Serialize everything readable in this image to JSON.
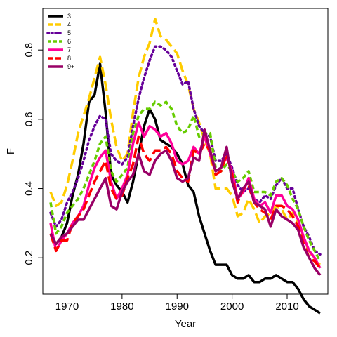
{
  "chart_data": {
    "type": "line",
    "xlabel": "Year",
    "ylabel": "F",
    "xlim": [
      1965.6,
      2017.4
    ],
    "ylim": [
      0.095,
      0.92
    ],
    "xticks": [
      1970,
      1980,
      1990,
      2000,
      2010
    ],
    "yticks": [
      0.2,
      0.4,
      0.6,
      0.8
    ],
    "xtick_labels": [
      "1970",
      "1980",
      "1990",
      "2000",
      "2010"
    ],
    "ytick_labels": [
      "0.2",
      "0.4",
      "0.6",
      "0.8"
    ],
    "grid": false,
    "legend_position": "top-left",
    "x": [
      1967,
      1968,
      1969,
      1970,
      1971,
      1972,
      1973,
      1974,
      1975,
      1976,
      1977,
      1978,
      1979,
      1980,
      1981,
      1982,
      1983,
      1984,
      1985,
      1986,
      1987,
      1988,
      1989,
      1990,
      1991,
      1992,
      1993,
      1994,
      1995,
      1996,
      1997,
      1998,
      1999,
      2000,
      2001,
      2002,
      2003,
      2004,
      2005,
      2006,
      2007,
      2008,
      2009,
      2010,
      2011,
      2012,
      2013,
      2014,
      2015,
      2016
    ],
    "series": [
      {
        "name": "3",
        "color": "#000000",
        "dash": "solid",
        "values": [
          0.27,
          0.24,
          0.26,
          0.3,
          0.38,
          0.44,
          0.53,
          0.65,
          0.67,
          0.76,
          0.62,
          0.44,
          0.41,
          0.39,
          0.36,
          0.42,
          0.5,
          0.58,
          0.63,
          0.6,
          0.54,
          0.53,
          0.52,
          0.5,
          0.47,
          0.41,
          0.39,
          0.32,
          0.27,
          0.22,
          0.18,
          0.18,
          0.18,
          0.15,
          0.14,
          0.14,
          0.15,
          0.13,
          0.13,
          0.14,
          0.14,
          0.15,
          0.14,
          0.13,
          0.13,
          0.11,
          0.08,
          0.06,
          0.05,
          0.04
        ]
      },
      {
        "name": "4",
        "color": "#FFCC00",
        "dash": "long",
        "values": [
          0.39,
          0.35,
          0.36,
          0.41,
          0.48,
          0.56,
          0.61,
          0.66,
          0.72,
          0.78,
          0.7,
          0.6,
          0.52,
          0.48,
          0.5,
          0.62,
          0.72,
          0.78,
          0.82,
          0.89,
          0.84,
          0.83,
          0.81,
          0.79,
          0.74,
          0.7,
          0.63,
          0.59,
          0.54,
          0.5,
          0.4,
          0.4,
          0.4,
          0.38,
          0.32,
          0.33,
          0.37,
          0.34,
          0.3,
          0.32,
          0.33,
          0.35,
          0.34,
          0.31,
          0.33,
          0.3,
          0.25,
          0.22,
          0.19,
          0.18
        ]
      },
      {
        "name": "5",
        "color": "#660099",
        "dash": "dot",
        "values": [
          0.33,
          0.29,
          0.31,
          0.36,
          0.39,
          0.43,
          0.48,
          0.54,
          0.58,
          0.61,
          0.6,
          0.5,
          0.48,
          0.47,
          0.49,
          0.58,
          0.66,
          0.72,
          0.77,
          0.81,
          0.81,
          0.8,
          0.78,
          0.74,
          0.7,
          0.71,
          0.63,
          0.58,
          0.56,
          0.55,
          0.48,
          0.48,
          0.5,
          0.46,
          0.41,
          0.39,
          0.4,
          0.37,
          0.36,
          0.38,
          0.37,
          0.41,
          0.43,
          0.4,
          0.4,
          0.34,
          0.29,
          0.26,
          0.22,
          0.21
        ]
      },
      {
        "name": "6",
        "color": "#66CC00",
        "dash": "short",
        "values": [
          0.36,
          0.27,
          0.29,
          0.33,
          0.35,
          0.37,
          0.4,
          0.44,
          0.48,
          0.53,
          0.55,
          0.45,
          0.42,
          0.44,
          0.46,
          0.56,
          0.61,
          0.63,
          0.63,
          0.65,
          0.64,
          0.65,
          0.63,
          0.58,
          0.56,
          0.57,
          0.61,
          0.55,
          0.56,
          0.56,
          0.46,
          0.45,
          0.47,
          0.45,
          0.42,
          0.43,
          0.45,
          0.39,
          0.39,
          0.39,
          0.38,
          0.42,
          0.43,
          0.41,
          0.37,
          0.34,
          0.29,
          0.25,
          0.22,
          0.19
        ]
      },
      {
        "name": "7",
        "color": "#FF0099",
        "dash": "solid",
        "values": [
          0.3,
          0.22,
          0.25,
          0.27,
          0.3,
          0.32,
          0.35,
          0.41,
          0.46,
          0.49,
          0.51,
          0.42,
          0.37,
          0.4,
          0.44,
          0.53,
          0.59,
          0.55,
          0.58,
          0.57,
          0.55,
          0.56,
          0.53,
          0.48,
          0.47,
          0.48,
          0.52,
          0.5,
          0.55,
          0.5,
          0.45,
          0.46,
          0.49,
          0.45,
          0.37,
          0.39,
          0.43,
          0.37,
          0.35,
          0.36,
          0.33,
          0.38,
          0.38,
          0.35,
          0.34,
          0.31,
          0.26,
          0.22,
          0.2,
          0.17
        ]
      },
      {
        "name": "8",
        "color": "#FF0000",
        "dash": "long",
        "values": [
          0.27,
          0.22,
          0.25,
          0.25,
          0.3,
          0.32,
          0.34,
          0.38,
          0.42,
          0.45,
          0.48,
          0.4,
          0.37,
          0.38,
          0.43,
          0.47,
          0.55,
          0.5,
          0.48,
          0.51,
          0.51,
          0.52,
          0.5,
          0.45,
          0.43,
          0.42,
          0.51,
          0.5,
          0.53,
          0.51,
          0.44,
          0.45,
          0.5,
          0.44,
          0.36,
          0.4,
          0.41,
          0.36,
          0.34,
          0.33,
          0.31,
          0.35,
          0.35,
          0.34,
          0.32,
          0.29,
          0.24,
          0.2,
          0.19,
          0.17
        ]
      },
      {
        "name": "9+",
        "color": "#990066",
        "dash": "solid",
        "values": [
          0.27,
          0.24,
          0.26,
          0.27,
          0.29,
          0.31,
          0.31,
          0.34,
          0.37,
          0.4,
          0.43,
          0.35,
          0.34,
          0.39,
          0.42,
          0.44,
          0.5,
          0.45,
          0.44,
          0.48,
          0.5,
          0.51,
          0.48,
          0.43,
          0.42,
          0.43,
          0.49,
          0.48,
          0.57,
          0.51,
          0.45,
          0.46,
          0.52,
          0.42,
          0.37,
          0.4,
          0.42,
          0.36,
          0.35,
          0.34,
          0.29,
          0.34,
          0.32,
          0.31,
          0.3,
          0.28,
          0.23,
          0.2,
          0.17,
          0.15
        ]
      }
    ]
  }
}
